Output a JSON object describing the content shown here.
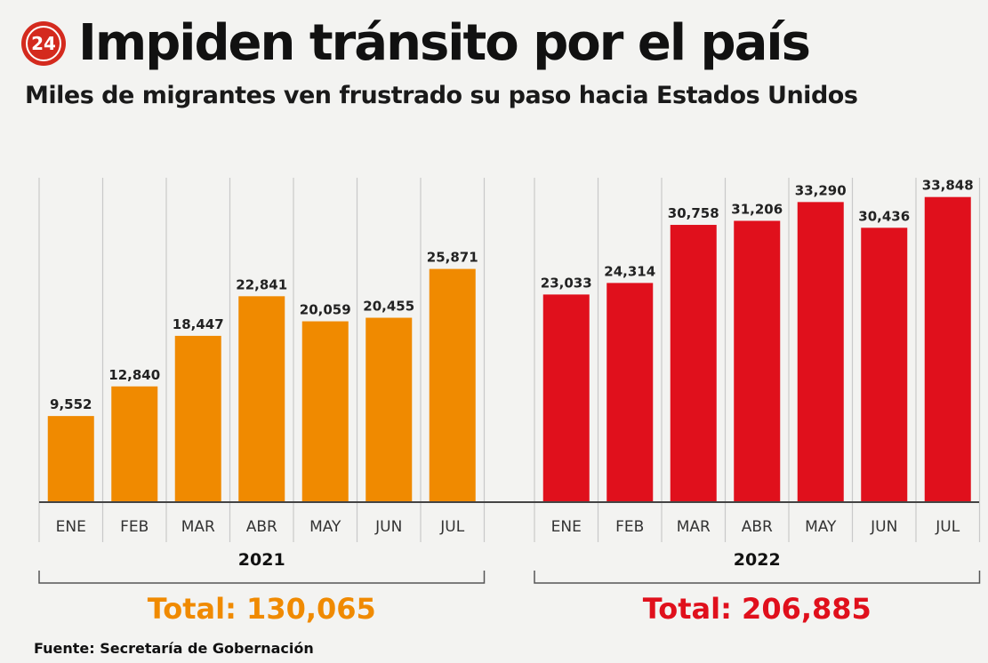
{
  "header": {
    "logo_text": "24",
    "title": "Impiden tránsito por el país",
    "subtitle": "Miles de migrantes ven frustrado su paso hacia Estados Unidos"
  },
  "footer": {
    "source": "Fuente: Secretaría de Gobernación"
  },
  "colors": {
    "orange": "#f08a00",
    "red": "#e0101c",
    "logo": "#d42a1e"
  },
  "chart_data": [
    {
      "type": "bar",
      "group": "2021",
      "categories": [
        "ENE",
        "FEB",
        "MAR",
        "ABR",
        "MAY",
        "JUN",
        "JUL"
      ],
      "values": [
        9552,
        12840,
        18447,
        22841,
        20059,
        20455,
        25871
      ],
      "data_labels": [
        "9,552",
        "12,840",
        "18,447",
        "22,841",
        "20,059",
        "20,455",
        "25,871"
      ],
      "total_label": "Total: 130,065",
      "color": "#f08a00",
      "ylim": [
        0,
        35000
      ],
      "grid": true
    },
    {
      "type": "bar",
      "group": "2022",
      "categories": [
        "ENE",
        "FEB",
        "MAR",
        "ABR",
        "MAY",
        "JUN",
        "JUL"
      ],
      "values": [
        23033,
        24314,
        30758,
        31206,
        33290,
        30436,
        33848
      ],
      "data_labels": [
        "23,033",
        "24,314",
        "30,758",
        "31,206",
        "33,290",
        "30,436",
        "33,848"
      ],
      "total_label": "Total: 206,885",
      "color": "#e0101c",
      "ylim": [
        0,
        35000
      ],
      "grid": true
    }
  ]
}
